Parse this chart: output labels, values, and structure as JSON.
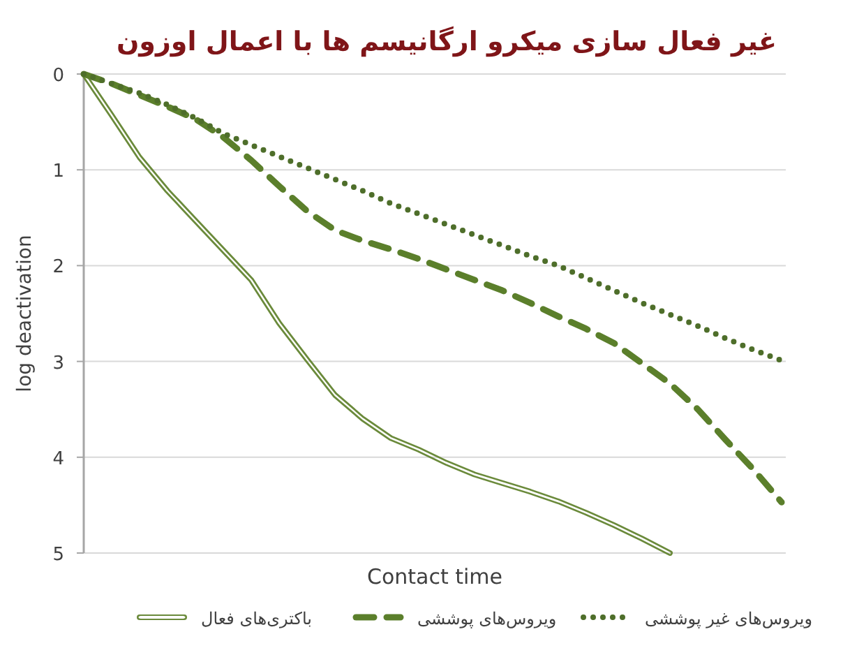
{
  "chart_data": {
    "type": "line",
    "title": "غیر فعال سازی میکرو ارگانیسم ها با اعمال اوزون",
    "xlabel": "Contact time",
    "ylabel": "log deactivation",
    "categories": [
      null,
      null,
      null,
      null,
      null,
      null,
      null,
      null,
      null,
      null,
      null,
      null,
      null,
      null,
      null,
      null,
      null,
      null,
      null,
      null,
      null,
      null,
      null,
      null,
      null,
      null
    ],
    "ylim": [
      5,
      0
    ],
    "yticks": [
      0,
      1,
      2,
      3,
      4,
      5
    ],
    "grid": "y",
    "legend": "bottom",
    "tick_labels": "y",
    "series": [
      {
        "name": "باکتری‌های فعال",
        "color": "#6b8a3a",
        "line_style": "solid",
        "values": [
          0,
          0.43,
          0.87,
          1.22,
          1.53,
          1.84,
          2.15,
          2.6,
          2.98,
          3.35,
          3.6,
          3.8,
          3.92,
          4.06,
          4.18,
          4.27,
          4.36,
          4.46,
          4.58,
          4.71,
          4.85,
          5.0,
          null,
          null,
          null,
          null
        ]
      },
      {
        "name": "ویروس‌های پوششی",
        "color": "#5b7f2b",
        "line_style": "dashed",
        "values": [
          0,
          0.1,
          0.22,
          0.34,
          0.47,
          0.66,
          0.9,
          1.17,
          1.43,
          1.63,
          1.74,
          1.83,
          1.93,
          2.04,
          2.15,
          2.26,
          2.39,
          2.53,
          2.66,
          2.81,
          3.02,
          3.23,
          3.5,
          3.82,
          4.13,
          4.47
        ]
      },
      {
        "name": "ویروس‌های غیر پوششی",
        "color": "#4e6e2a",
        "line_style": "dotted",
        "values": [
          0,
          0.1,
          0.2,
          0.32,
          0.46,
          0.62,
          0.74,
          0.86,
          0.98,
          1.1,
          1.22,
          1.35,
          1.46,
          1.57,
          1.68,
          1.79,
          1.9,
          2.0,
          2.13,
          2.26,
          2.39,
          2.51,
          2.63,
          2.76,
          2.88,
          2.99
        ]
      }
    ]
  }
}
